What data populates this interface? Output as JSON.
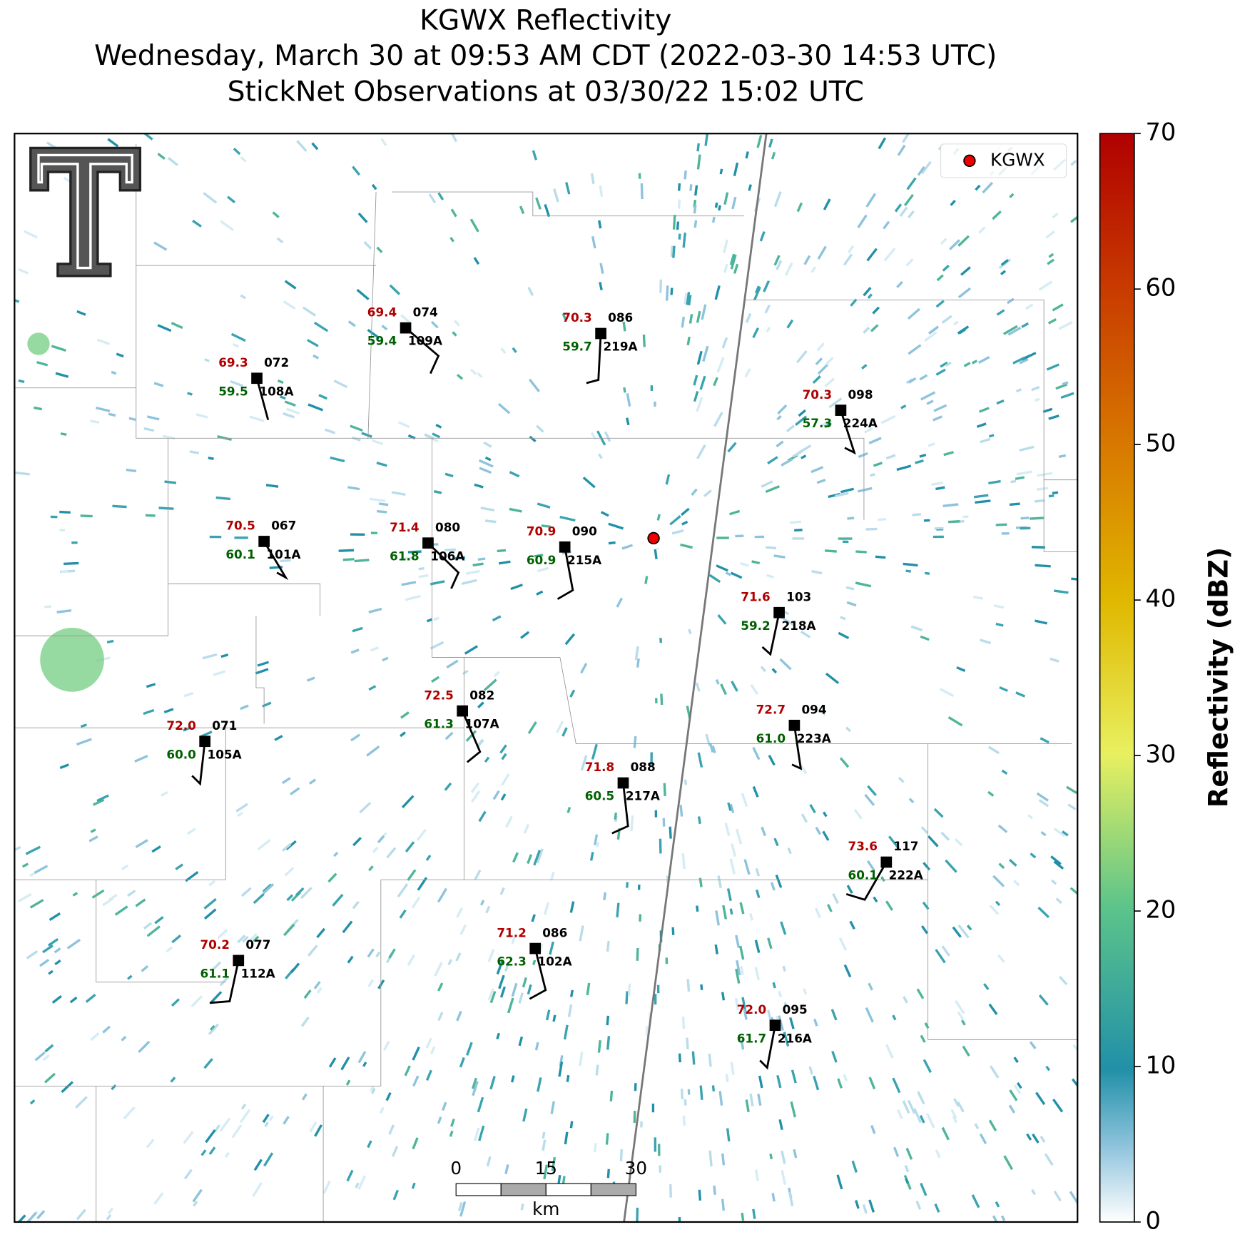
{
  "title": [
    "KGWX Reflectivity",
    "Wednesday, March 30 at 09:53 AM CDT (2022-03-30 14:53 UTC)",
    "StickNet Observations at 03/30/22 15:02 UTC"
  ],
  "legend": "KGWX",
  "colorbar": {
    "label": "Reflectivity (dBZ)",
    "lim": [
      0,
      70
    ],
    "ticks": [
      0,
      10,
      20,
      30,
      40,
      50,
      60,
      70
    ]
  },
  "scale_bar": {
    "ticks": [
      0,
      15,
      30
    ],
    "unit": "km"
  },
  "stations": [
    {
      "id": "108A",
      "temp": "69.3",
      "dew": "59.5",
      "pres": "072"
    },
    {
      "id": "109A",
      "temp": "69.4",
      "dew": "59.4",
      "pres": "074"
    },
    {
      "id": "219A",
      "temp": "70.3",
      "dew": "59.7",
      "pres": "086"
    },
    {
      "id": "224A",
      "temp": "70.3",
      "dew": "57.3",
      "pres": "098"
    },
    {
      "id": "101A",
      "temp": "70.5",
      "dew": "60.1",
      "pres": "067"
    },
    {
      "id": "106A",
      "temp": "71.4",
      "dew": "61.8",
      "pres": "080"
    },
    {
      "id": "215A",
      "temp": "70.9",
      "dew": "60.9",
      "pres": "090"
    },
    {
      "id": "218A",
      "temp": "71.6",
      "dew": "59.2",
      "pres": "103"
    },
    {
      "id": "105A",
      "temp": "72.0",
      "dew": "60.0",
      "pres": "071"
    },
    {
      "id": "107A",
      "temp": "72.5",
      "dew": "61.3",
      "pres": "082"
    },
    {
      "id": "223A",
      "temp": "72.7",
      "dew": "61.0",
      "pres": "094"
    },
    {
      "id": "217A",
      "temp": "71.8",
      "dew": "60.5",
      "pres": "088"
    },
    {
      "id": "222A",
      "temp": "73.6",
      "dew": "60.1",
      "pres": "117"
    },
    {
      "id": "102A",
      "temp": "71.2",
      "dew": "62.3",
      "pres": "086"
    },
    {
      "id": "112A",
      "temp": "70.2",
      "dew": "61.1",
      "pres": "077"
    },
    {
      "id": "216A",
      "temp": "72.0",
      "dew": "61.7",
      "pres": "095"
    }
  ]
}
